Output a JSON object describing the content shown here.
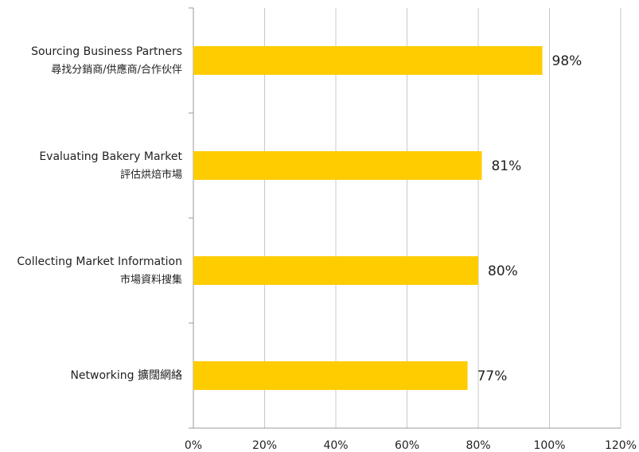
{
  "chart_data": {
    "type": "bar",
    "orientation": "horizontal",
    "categories": [
      [
        "Sourcing Business Partners",
        "尋找分銷商/供應商/合作伙伴"
      ],
      [
        "Evaluating Bakery Market",
        "評估烘焙市場"
      ],
      [
        "Collecting Market Information",
        "市場資料搜集"
      ],
      [
        "Networking  擴闊網絡"
      ]
    ],
    "values": [
      98,
      81,
      80,
      77
    ],
    "value_labels": [
      "98%",
      "81%",
      "80%",
      "77%"
    ],
    "color": "#ffcc00",
    "xlim": [
      0,
      120
    ],
    "xticks": [
      {
        "value": 0,
        "label": "0%"
      },
      {
        "value": 20,
        "label": "20%"
      },
      {
        "value": 40,
        "label": "40%"
      },
      {
        "value": 60,
        "label": "60%"
      },
      {
        "value": 80,
        "label": "80%"
      },
      {
        "value": 100,
        "label": "100%"
      },
      {
        "value": 120,
        "label": "120%"
      }
    ],
    "grid": true
  }
}
